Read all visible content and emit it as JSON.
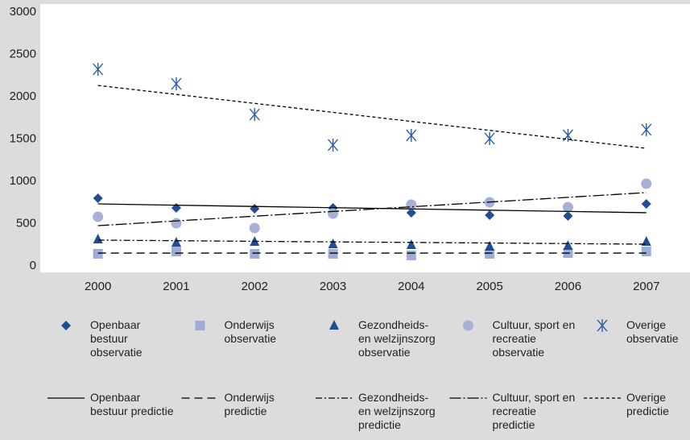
{
  "chart_data": {
    "type": "line",
    "categories": [
      "2000",
      "2001",
      "2002",
      "2003",
      "2004",
      "2005",
      "2006",
      "2007"
    ],
    "ylim": [
      0,
      3000
    ],
    "yticks": [
      0,
      500,
      1000,
      1500,
      2000,
      2500,
      3000
    ],
    "grid": false,
    "series": [
      {
        "name": "Openbaar bestuur observatie",
        "color": "#1f4e96",
        "marker": "diamond",
        "values": [
          800,
          686,
          676,
          686,
          629,
          600,
          590,
          733
        ]
      },
      {
        "name": "Onderwijs observatie",
        "color": "#9eacd8",
        "marker": "square",
        "values": [
          143,
          171,
          143,
          143,
          124,
          143,
          152,
          171
        ]
      },
      {
        "name": "Gezondheids- en welzijnszorg observatie",
        "color": "#1f4e96",
        "marker": "triangle",
        "values": [
          314,
          276,
          286,
          257,
          248,
          229,
          238,
          286
        ]
      },
      {
        "name": "Cultuur, sport en recreatie observatie",
        "color": "#a7b1d8",
        "marker": "circle",
        "values": [
          581,
          505,
          448,
          619,
          724,
          752,
          695,
          971
        ]
      },
      {
        "name": "Overige observatie",
        "color": "#2e5fa8",
        "marker": "star",
        "values": [
          2324,
          2152,
          1790,
          1429,
          1543,
          1505,
          1543,
          1610
        ]
      },
      {
        "name": "Openbaar bestuur predictie",
        "color": "#000000",
        "dash": "none",
        "values": [
          733,
          718,
          703,
          688,
          674,
          659,
          644,
          629
        ]
      },
      {
        "name": "Onderwijs predictie",
        "color": "#000000",
        "dash": "10 6",
        "values": [
          152,
          152,
          152,
          152,
          152,
          152,
          152,
          152
        ]
      },
      {
        "name": "Gezondheids- en welzijnszorg predictie",
        "color": "#000000",
        "dash": "8 3 2 3",
        "values": [
          305,
          298,
          291,
          284,
          278,
          271,
          264,
          257
        ]
      },
      {
        "name": "Cultuur, sport en recreatie predictie",
        "color": "#000000",
        "dash": "14 3 2 3",
        "values": [
          476,
          532,
          588,
          644,
          699,
          755,
          811,
          867
        ]
      },
      {
        "name": "Overige predictie",
        "color": "#000000",
        "dash": "4 3",
        "values": [
          2133,
          2027,
          1921,
          1815,
          1708,
          1602,
          1496,
          1390
        ]
      }
    ]
  }
}
